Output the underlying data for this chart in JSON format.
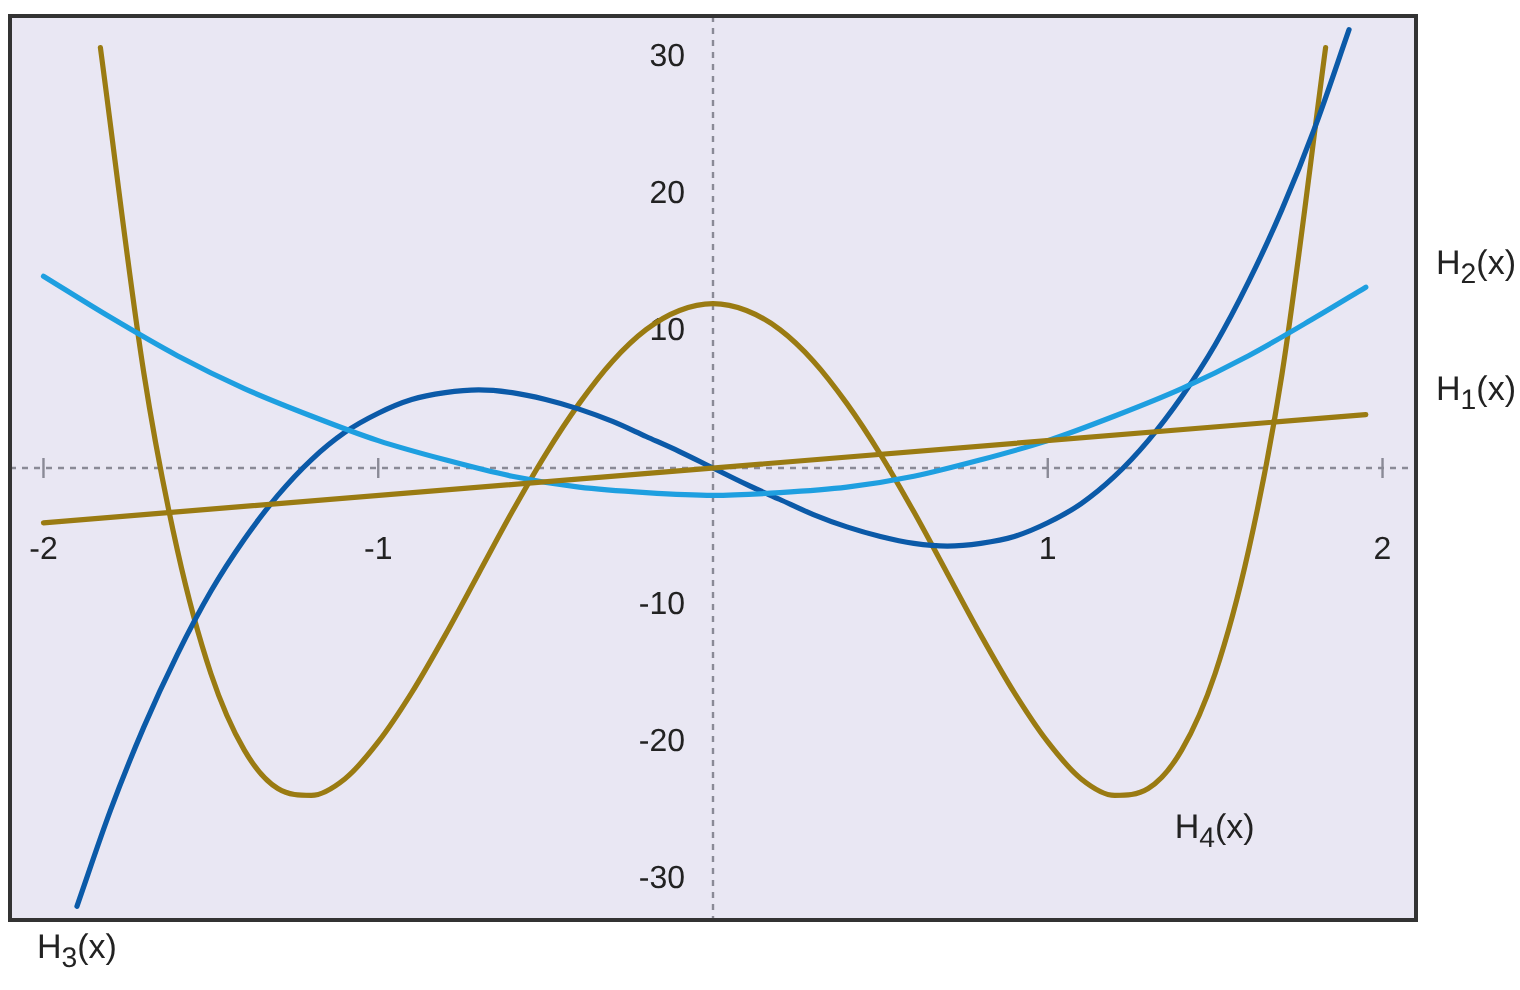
{
  "chart_data": {
    "type": "line",
    "xlim": [
      -2.1,
      2.1
    ],
    "ylim": [
      -33,
      33
    ],
    "xticks": [
      -2,
      -1,
      1,
      2
    ],
    "yticks": [
      -30,
      -20,
      -10,
      10,
      20,
      30
    ],
    "grid": false,
    "legend": false,
    "marker": "none",
    "line_style": "solid",
    "series": [
      {
        "name": "H$_{1}$(x)",
        "color": "#9a7b12",
        "x": [
          -2,
          1.95
        ],
        "values": [
          -4,
          3.9
        ]
      },
      {
        "name": "H$_{2}$(x)",
        "color": "#1e9fe0",
        "x": [
          -2,
          -1.8,
          -1.6,
          -1.4,
          -1.2,
          -1,
          -0.8,
          -0.6,
          -0.4,
          -0.2,
          0,
          0.2,
          0.4,
          0.6,
          0.8,
          1,
          1.2,
          1.4,
          1.6,
          1.8,
          1.95
        ],
        "values": [
          14,
          11,
          8.2,
          5.8,
          3.8,
          2,
          0.6,
          -0.6,
          -1.4,
          -1.8,
          -2,
          -1.8,
          -1.4,
          -0.6,
          0.6,
          2,
          3.8,
          5.8,
          8.2,
          11,
          13.2
        ]
      },
      {
        "name": "H$_{3}$(x)",
        "color": "#0b5aa8",
        "x": [
          -1.9,
          -1.8,
          -1.7,
          -1.6,
          -1.5,
          -1.4,
          -1.3,
          -1.2,
          -1.1,
          -1,
          -0.9,
          -0.8,
          -0.7,
          -0.6,
          -0.5,
          -0.4,
          -0.3,
          -0.2,
          -0.1,
          0,
          0.1,
          0.2,
          0.3,
          0.4,
          0.5,
          0.6,
          0.7,
          0.8,
          0.9,
          1,
          1.1,
          1.2,
          1.3,
          1.4,
          1.5,
          1.6,
          1.7,
          1.8,
          1.9
        ],
        "values": [
          -32,
          -25,
          -18.9,
          -13.6,
          -9,
          -5.2,
          -2,
          0.6,
          2.6,
          4,
          5,
          5.5,
          5.7,
          5.5,
          5,
          4.3,
          3.4,
          2.3,
          1.2,
          0,
          -1.2,
          -2.3,
          -3.4,
          -4.3,
          -5,
          -5.5,
          -5.7,
          -5.5,
          -5,
          -4,
          -2.6,
          -0.6,
          2,
          5.2,
          9,
          13.6,
          18.9,
          25,
          32
        ]
      },
      {
        "name": "H$_{4}$(x)",
        "color": "#9a7b12",
        "x": [
          -1.83,
          -1.7,
          -1.6,
          -1.5,
          -1.4,
          -1.3,
          -1.2,
          -1.1,
          -1,
          -0.9,
          -0.8,
          -0.7,
          -0.6,
          -0.5,
          -0.4,
          -0.3,
          -0.2,
          -0.1,
          0,
          0.1,
          0.2,
          0.3,
          0.4,
          0.5,
          0.6,
          0.7,
          0.8,
          0.9,
          1,
          1.1,
          1.2,
          1.3,
          1.4,
          1.5,
          1.6,
          1.7,
          1.83
        ],
        "values": [
          30.7,
          6.9,
          -6,
          -15,
          -20.6,
          -23.4,
          -23.9,
          -22.7,
          -20,
          -16.4,
          -12.2,
          -7.7,
          -3.2,
          1,
          4.7,
          7.8,
          10.1,
          11.5,
          12,
          11.5,
          10.1,
          7.8,
          4.7,
          1,
          -3.2,
          -7.7,
          -12.2,
          -16.4,
          -20,
          -22.7,
          -23.9,
          -23.4,
          -20.6,
          -15,
          -6,
          6.9,
          30.7
        ]
      }
    ]
  }
}
